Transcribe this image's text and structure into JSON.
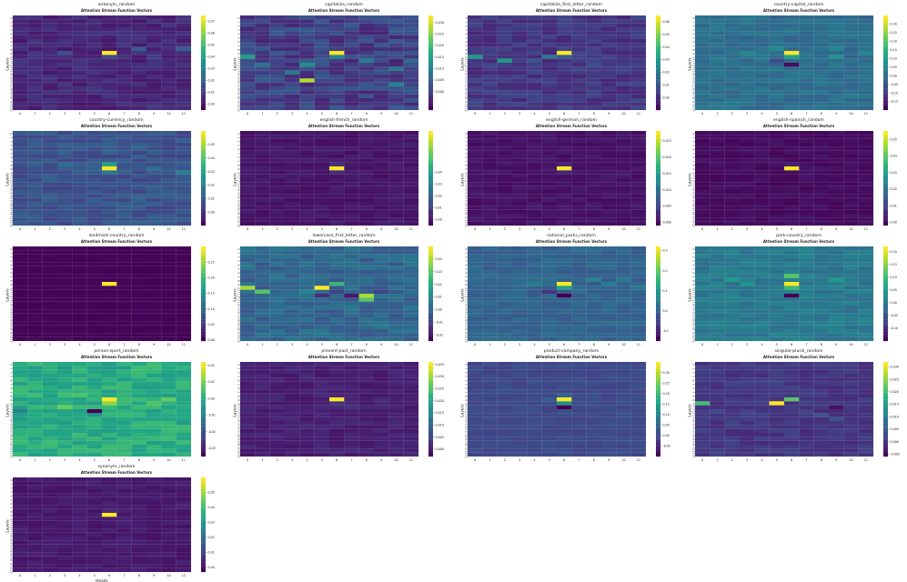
{
  "figure": {
    "heads": [
      "0",
      "1",
      "2",
      "3",
      "4",
      "5",
      "6",
      "7",
      "8",
      "9",
      "10",
      "11"
    ],
    "layers": [
      "0",
      "1",
      "2",
      "3",
      "4",
      "5",
      "6",
      "7",
      "8",
      "9",
      "10",
      "11",
      "12",
      "13",
      "14",
      "15",
      "16",
      "17",
      "18",
      "19",
      "20",
      "21",
      "22",
      "23"
    ],
    "xlabel": "Heads",
    "ylabel": "Layers",
    "subtitle": "Attention Stream Function Vectors"
  },
  "chart_data": [
    {
      "type": "heatmap",
      "task": "antonym_random",
      "title": "Attention Stream Function Vectors",
      "xlabel": "",
      "ylabel": "Layers",
      "colormap": "viridis",
      "clim": [
        -0.005,
        0.075
      ],
      "colorbar_ticks": [
        "0.00",
        "0.01",
        "0.02",
        "0.03",
        "0.04",
        "0.05",
        "0.06",
        "0.07"
      ],
      "base": 0.004,
      "noise": 0.004,
      "hot": [
        [
          9,
          6,
          0.075
        ],
        [
          10,
          6,
          0.012
        ],
        [
          9,
          3,
          0.015
        ],
        [
          8,
          8,
          0.018
        ],
        [
          8,
          11,
          0.02
        ],
        [
          11,
          4,
          0.008
        ],
        [
          10,
          9,
          0.01
        ]
      ]
    },
    {
      "type": "heatmap",
      "task": "capitalize_random",
      "title": "Attention Stream Function Vectors",
      "xlabel": "",
      "ylabel": "Layers",
      "colormap": "viridis",
      "clim": [
        -0.008,
        0.033
      ],
      "colorbar_ticks": [
        "0.000",
        "0.005",
        "0.010",
        "0.015",
        "0.020",
        "0.025",
        "0.030"
      ],
      "base": 0.0,
      "noise": 0.004,
      "hot": [
        [
          9,
          6,
          0.033
        ],
        [
          10,
          0,
          0.015
        ],
        [
          12,
          4,
          0.012
        ],
        [
          16,
          4,
          0.028
        ],
        [
          10,
          6,
          0.01
        ],
        [
          13,
          10,
          0.008
        ],
        [
          11,
          8,
          0.009
        ],
        [
          17,
          10,
          0.01
        ],
        [
          12,
          1,
          0.008
        ],
        [
          14,
          3,
          0.009
        ],
        [
          11,
          11,
          0.006
        ]
      ]
    },
    {
      "type": "heatmap",
      "task": "capitalize_first_letter_random",
      "title": "Attention Stream Function Vectors",
      "xlabel": "",
      "ylabel": "Layers",
      "colormap": "viridis",
      "clim": [
        -0.01,
        0.065
      ],
      "colorbar_ticks": [
        "0.00",
        "0.01",
        "0.02",
        "0.03",
        "0.04",
        "0.05",
        "0.06"
      ],
      "base": 0.002,
      "noise": 0.004,
      "hot": [
        [
          9,
          6,
          0.065
        ],
        [
          10,
          0,
          0.03
        ],
        [
          11,
          2,
          0.03
        ],
        [
          10,
          5,
          0.02
        ],
        [
          11,
          4,
          0.01
        ],
        [
          12,
          8,
          0.008
        ],
        [
          10,
          6,
          0.012
        ]
      ]
    },
    {
      "type": "heatmap",
      "task": "country-capital_random",
      "title": "Attention Stream Function Vectors",
      "xlabel": "",
      "ylabel": "Layers",
      "colormap": "viridis",
      "clim": [
        -0.2,
        0.35
      ],
      "colorbar_ticks": [
        "-0.15",
        "-0.10",
        "-0.05",
        "0.00",
        "0.05",
        "0.10",
        "0.15",
        "0.20",
        "0.25",
        "0.30"
      ],
      "base": 0.0,
      "noise": 0.025,
      "hot": [
        [
          9,
          6,
          0.35
        ],
        [
          10,
          6,
          0.12
        ],
        [
          12,
          6,
          -0.18
        ],
        [
          8,
          5,
          0.06
        ],
        [
          9,
          3,
          0.05
        ],
        [
          10,
          9,
          0.08
        ],
        [
          11,
          5,
          -0.08
        ],
        [
          8,
          9,
          0.05
        ],
        [
          9,
          11,
          0.05
        ]
      ]
    },
    {
      "type": "heatmap",
      "task": "country-currency_random",
      "title": "Attention Stream Function Vectors",
      "xlabel": "",
      "ylabel": "Layers",
      "colormap": "viridis",
      "clim": [
        -0.01,
        0.06
      ],
      "colorbar_ticks": [
        "0.00",
        "0.01",
        "0.02",
        "0.03",
        "0.04",
        "0.05"
      ],
      "base": 0.008,
      "noise": 0.004,
      "hot": [
        [
          9,
          6,
          0.06
        ],
        [
          8,
          6,
          0.03
        ],
        [
          10,
          6,
          0.018
        ],
        [
          10,
          11,
          0.02
        ],
        [
          9,
          9,
          0.016
        ],
        [
          8,
          3,
          0.015
        ],
        [
          8,
          1,
          0.012
        ]
      ]
    },
    {
      "type": "heatmap",
      "task": "english-french_random",
      "title": "Attention Stream Function Vectors",
      "xlabel": "",
      "ylabel": "Layers",
      "colormap": "viridis",
      "clim": [
        -0.005,
        0.075
      ],
      "colorbar_ticks": [
        "0.00",
        "0.01",
        "0.02",
        "0.03",
        "0.04"
      ],
      "base": 0.0,
      "noise": 0.002,
      "hot": [
        [
          9,
          6,
          0.075
        ],
        [
          8,
          6,
          0.006
        ],
        [
          10,
          6,
          0.005
        ]
      ]
    },
    {
      "type": "heatmap",
      "task": "english-german_random",
      "title": "Attention Stream Function Vectors",
      "xlabel": "",
      "ylabel": "Layers",
      "colormap": "viridis",
      "clim": [
        -0.001,
        0.028
      ],
      "colorbar_ticks": [
        "0.000",
        "0.005",
        "0.010",
        "0.015",
        "0.020",
        "0.025"
      ],
      "base": 0.0005,
      "noise": 0.0007,
      "hot": [
        [
          9,
          6,
          0.028
        ],
        [
          8,
          6,
          0.002
        ],
        [
          10,
          6,
          0.002
        ]
      ]
    },
    {
      "type": "heatmap",
      "task": "english-spanish_random",
      "title": "Attention Stream Function Vectors",
      "xlabel": "",
      "ylabel": "Layers",
      "colormap": "viridis",
      "clim": [
        -0.002,
        0.055
      ],
      "colorbar_ticks": [
        "0.00",
        "0.01",
        "0.02",
        "0.03",
        "0.04",
        "0.05"
      ],
      "base": 0.0,
      "noise": 0.0012,
      "hot": [
        [
          9,
          6,
          0.055
        ],
        [
          8,
          6,
          0.003
        ]
      ]
    },
    {
      "type": "heatmap",
      "task": "landmark-country_random",
      "title": "Attention Stream Function Vectors",
      "xlabel": "",
      "ylabel": "Layers",
      "colormap": "viridis",
      "clim": [
        -0.003,
        0.3
      ],
      "colorbar_ticks": [
        "0.00",
        "0.05",
        "0.10",
        "0.15",
        "0.20",
        "0.25"
      ],
      "base": 0.0,
      "noise": 0.002,
      "hot": [
        [
          9,
          6,
          0.3
        ]
      ]
    },
    {
      "type": "heatmap",
      "task": "lowercase_first_letter_random",
      "title": "Attention Stream Function Vectors",
      "xlabel": "",
      "ylabel": "Layers",
      "colormap": "viridis",
      "clim": [
        -0.025,
        0.05
      ],
      "colorbar_ticks": [
        "-0.02",
        "-0.01",
        "0.00",
        "0.01",
        "0.02",
        "0.03",
        "0.04"
      ],
      "base": 0.0,
      "noise": 0.005,
      "hot": [
        [
          10,
          0,
          0.04
        ],
        [
          10,
          5,
          0.05
        ],
        [
          11,
          1,
          0.03
        ],
        [
          9,
          6,
          0.025
        ],
        [
          12,
          7,
          -0.02
        ],
        [
          12,
          8,
          0.04
        ],
        [
          13,
          8,
          0.03
        ],
        [
          12,
          5,
          -0.015
        ],
        [
          11,
          6,
          -0.01
        ],
        [
          11,
          9,
          -0.01
        ],
        [
          11,
          4,
          0.01
        ]
      ]
    },
    {
      "type": "heatmap",
      "task": "national_parks_random",
      "title": "Attention Stream Function Vectors",
      "xlabel": "",
      "ylabel": "Layers",
      "colormap": "viridis",
      "clim": [
        -0.15,
        0.32
      ],
      "colorbar_ticks": [
        "-0.1",
        "0.0",
        "0.1",
        "0.2",
        "0.3"
      ],
      "base": 0.0,
      "noise": 0.02,
      "hot": [
        [
          9,
          6,
          0.32
        ],
        [
          10,
          6,
          0.12
        ],
        [
          12,
          6,
          -0.15
        ],
        [
          8,
          8,
          0.06
        ],
        [
          9,
          9,
          0.05
        ],
        [
          8,
          10,
          0.04
        ],
        [
          11,
          5,
          -0.08
        ],
        [
          9,
          4,
          0.05
        ],
        [
          10,
          11,
          0.04
        ]
      ]
    },
    {
      "type": "heatmap",
      "task": "park-country_random",
      "title": "Attention Stream Function Vectors",
      "xlabel": "",
      "ylabel": "Layers",
      "colormap": "viridis",
      "clim": [
        -0.15,
        0.22
      ],
      "colorbar_ticks": [
        "-0.10",
        "-0.05",
        "0.00",
        "0.05",
        "0.10",
        "0.15",
        "0.20"
      ],
      "base": 0.0,
      "noise": 0.018,
      "hot": [
        [
          9,
          6,
          0.22
        ],
        [
          7,
          6,
          0.12
        ],
        [
          10,
          6,
          0.1
        ],
        [
          12,
          6,
          -0.15
        ],
        [
          8,
          2,
          0.05
        ],
        [
          9,
          3,
          0.04
        ],
        [
          8,
          9,
          0.05
        ]
      ]
    },
    {
      "type": "heatmap",
      "task": "person-sport_random",
      "title": "Attention Stream Function Vectors",
      "xlabel": "",
      "ylabel": "Layers",
      "colormap": "viridis",
      "clim": [
        -0.035,
        0.022
      ],
      "colorbar_ticks": [
        "-0.03",
        "-0.02",
        "-0.01",
        "0.00",
        "0.01",
        "0.02"
      ],
      "base": 0.0,
      "noise": 0.004,
      "hot": [
        [
          9,
          6,
          0.022
        ],
        [
          12,
          5,
          -0.035
        ],
        [
          10,
          6,
          0.012
        ],
        [
          9,
          10,
          0.008
        ],
        [
          11,
          3,
          0.009
        ],
        [
          12,
          0,
          -0.01
        ],
        [
          10,
          9,
          0.006
        ],
        [
          8,
          4,
          0.006
        ]
      ]
    },
    {
      "type": "heatmap",
      "task": "present-past_random",
      "title": "Attention Stream Function Vectors",
      "xlabel": "",
      "ylabel": "Layers",
      "colormap": "viridis",
      "clim": [
        -0.003,
        0.036
      ],
      "colorbar_ticks": [
        "0.000",
        "0.005",
        "0.010",
        "0.015",
        "0.020",
        "0.025",
        "0.030",
        "0.035"
      ],
      "base": 0.0005,
      "noise": 0.0012,
      "hot": [
        [
          9,
          6,
          0.036
        ],
        [
          11,
          7,
          0.0025
        ],
        [
          10,
          6,
          0.003
        ]
      ]
    },
    {
      "type": "heatmap",
      "task": "product-company_random",
      "title": "Attention Stream Function Vectors",
      "xlabel": "",
      "ylabel": "Layers",
      "colormap": "viridis",
      "clim": [
        -0.1,
        0.35
      ],
      "colorbar_ticks": [
        "-0.05",
        "0.00",
        "0.05",
        "0.10",
        "0.15",
        "0.20",
        "0.25",
        "0.30"
      ],
      "base": 0.0,
      "noise": 0.012,
      "hot": [
        [
          9,
          6,
          0.35
        ],
        [
          10,
          6,
          0.12
        ],
        [
          11,
          6,
          -0.1
        ],
        [
          8,
          6,
          0.05
        ],
        [
          9,
          5,
          0.03
        ]
      ]
    },
    {
      "type": "heatmap",
      "task": "singular-plural_random",
      "title": "Attention Stream Function Vectors",
      "xlabel": "",
      "ylabel": "Layers",
      "colormap": "viridis",
      "clim": [
        -0.006,
        0.032
      ],
      "colorbar_ticks": [
        "-0.005",
        "0.000",
        "0.005",
        "0.010",
        "0.015",
        "0.020",
        "0.025",
        "0.030"
      ],
      "base": 0.0,
      "noise": 0.0015,
      "hot": [
        [
          10,
          0,
          0.02
        ],
        [
          10,
          5,
          0.032
        ],
        [
          9,
          6,
          0.022
        ],
        [
          13,
          8,
          0.004
        ],
        [
          12,
          1,
          0.003
        ],
        [
          11,
          9,
          -0.004
        ],
        [
          14,
          9,
          0.004
        ]
      ]
    },
    {
      "type": "heatmap",
      "task": "synonym_random",
      "title": "Attention Stream Function Vectors",
      "xlabel": "Heads",
      "ylabel": "Layers",
      "colormap": "viridis",
      "clim": [
        -0.003,
        0.06
      ],
      "colorbar_ticks": [
        "0.00",
        "0.01",
        "0.02",
        "0.03",
        "0.04",
        "0.05"
      ],
      "base": 0.0015,
      "noise": 0.0015,
      "hot": [
        [
          9,
          6,
          0.06
        ],
        [
          8,
          6,
          0.004
        ]
      ]
    }
  ]
}
